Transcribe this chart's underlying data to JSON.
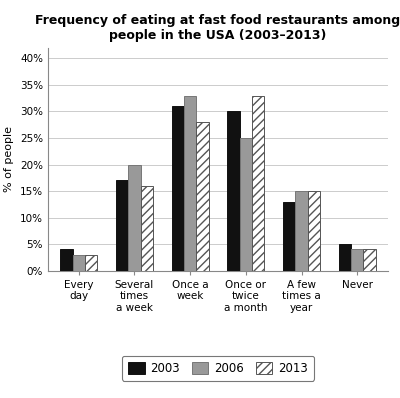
{
  "title_line1": "Frequency of eating at fast food restaurants among",
  "title_line2": "people in the USA (2003–2013)",
  "categories": [
    "Every\nday",
    "Several\ntimes\na week",
    "Once a\nweek",
    "Once or\ntwice\na month",
    "A few\ntimes a\nyear",
    "Never"
  ],
  "series": {
    "2003": [
      4,
      17,
      31,
      30,
      13,
      5
    ],
    "2006": [
      3,
      20,
      33,
      25,
      15,
      4
    ],
    "2013": [
      3,
      16,
      28,
      33,
      15,
      4
    ]
  },
  "bar_colors": {
    "2003": "#111111",
    "2006": "#999999",
    "2013": "#ffffff"
  },
  "bar_edgecolors": {
    "2003": "#111111",
    "2006": "#777777",
    "2013": "#555555"
  },
  "hatch": {
    "2003": "",
    "2006": "",
    "2013": "////"
  },
  "ylabel": "% of people",
  "ylim": [
    0,
    42
  ],
  "yticks": [
    0,
    5,
    10,
    15,
    20,
    25,
    30,
    35,
    40
  ],
  "ytick_labels": [
    "0%",
    "5%",
    "10%",
    "15%",
    "20%",
    "25%",
    "30%",
    "35%",
    "40%"
  ],
  "legend_labels": [
    "2003",
    "2006",
    "2013"
  ],
  "bar_width": 0.22,
  "background_color": "#ffffff",
  "grid_color": "#cccccc",
  "title_fontsize": 9,
  "axis_label_fontsize": 8,
  "tick_fontsize": 7.5,
  "legend_fontsize": 8.5
}
